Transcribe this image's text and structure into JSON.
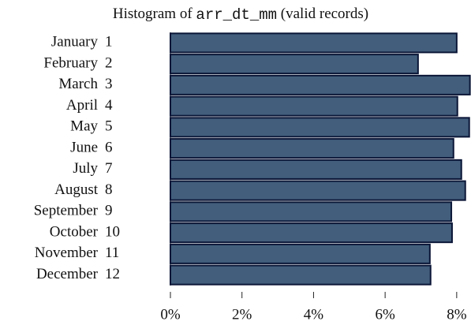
{
  "chart_data": {
    "type": "hbar",
    "title": "Histogram of",
    "title_field": "arr_dt_mm",
    "title_note": "(valid records)",
    "categories": [
      "January",
      "February",
      "March",
      "April",
      "May",
      "June",
      "July",
      "August",
      "September",
      "October",
      "November",
      "December"
    ],
    "category_codes": [
      1,
      2,
      3,
      4,
      5,
      6,
      7,
      8,
      9,
      10,
      11,
      12
    ],
    "values": [
      8.0,
      6.92,
      8.37,
      8.02,
      8.35,
      7.91,
      8.13,
      8.24,
      7.85,
      7.87,
      7.25,
      7.27
    ],
    "color": "#425e7c",
    "edge_color": "#0b1637",
    "xlim": [
      0,
      8.4
    ],
    "xticks": [
      {
        "value": 0,
        "label": "0%"
      },
      {
        "value": 2,
        "label": "2%"
      },
      {
        "value": 4,
        "label": "4%"
      },
      {
        "value": 6,
        "label": "6%"
      },
      {
        "value": 8,
        "label": "8%"
      }
    ]
  }
}
